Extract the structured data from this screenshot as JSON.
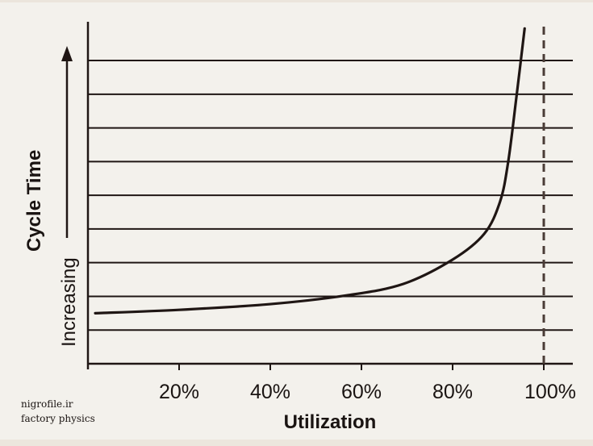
{
  "chart_data": {
    "type": "line",
    "title": "",
    "xlabel": "Utilization",
    "ylabel": "Cycle Time",
    "ylabel_prefix": "Increasing",
    "x_ticks": [
      20,
      40,
      60,
      80,
      100
    ],
    "x_tick_labels": [
      "20%",
      "40%",
      "60%",
      "80%",
      "100%"
    ],
    "xlim": [
      0,
      106
    ],
    "ylim": [
      0,
      10.15
    ],
    "grid": true,
    "grid_y_values": [
      1,
      2,
      3,
      4,
      5,
      6,
      7,
      8,
      9
    ],
    "asymptote_x": 100,
    "series": [
      {
        "name": "Cycle Time",
        "x": [
          1.6,
          20,
          40,
          56.8,
          69.2,
          80,
          86.9,
          90.4,
          92.2,
          94,
          95.8
        ],
        "y": [
          1.5,
          1.6,
          1.77,
          2.03,
          2.37,
          3.09,
          3.85,
          4.81,
          6.0,
          7.92,
          9.95
        ]
      }
    ],
    "colors": {
      "line": "#1f1614",
      "grid": "#1f1614",
      "dashed": "#4a3c36"
    }
  },
  "watermark": {
    "line1": "nigrofile.ir",
    "line2": "factory physics"
  }
}
